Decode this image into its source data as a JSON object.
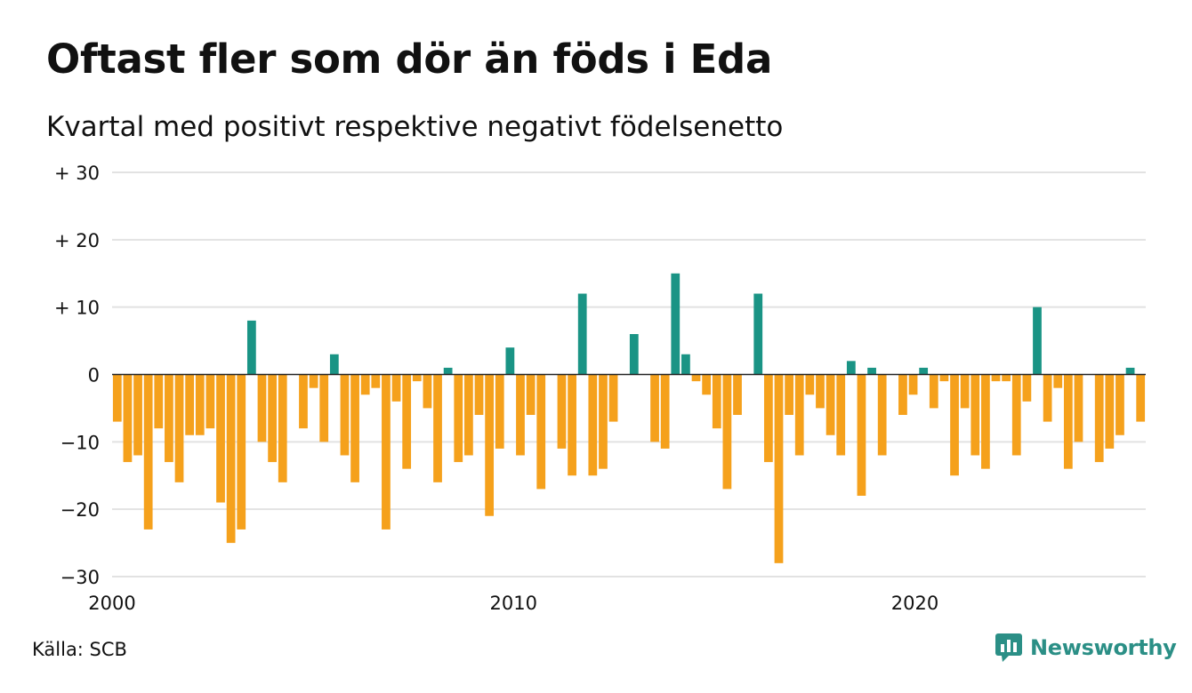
{
  "chart_data": {
    "type": "bar",
    "title": "Oftast fler som dör än föds i Eda",
    "subtitle": "Kvartal med positivt respektive negativt födelsenetto",
    "ylim": [
      -30,
      30
    ],
    "y_ticks": [
      30,
      20,
      10,
      0,
      -10,
      -20,
      -30
    ],
    "y_tick_labels": [
      "+ 30",
      "+ 20",
      "+ 10",
      "0",
      "−10",
      "−20",
      "−30"
    ],
    "x_range": [
      2000,
      2025.75
    ],
    "x_ticks": [
      2000,
      2010,
      2020
    ],
    "x_tick_labels": [
      "2000",
      "2010",
      "2020"
    ],
    "grid": true,
    "colors": {
      "positive": "#1a9485",
      "negative": "#f5a11c"
    },
    "start": "2000 Q1",
    "values": [
      -7,
      -13,
      -12,
      -23,
      -8,
      -13,
      -16,
      -9,
      -9,
      -8,
      -19,
      -25,
      -23,
      8,
      -10,
      -13,
      -16,
      0,
      -8,
      -2,
      -10,
      3,
      -12,
      -16,
      -3,
      -2,
      -23,
      -4,
      -14,
      -1,
      -5,
      -16,
      1,
      -13,
      -12,
      -6,
      -21,
      -11,
      4,
      -12,
      -6,
      -17,
      0,
      -11,
      -15,
      12,
      -15,
      -14,
      -7,
      0,
      6,
      0,
      -10,
      -11,
      15,
      3,
      -1,
      -3,
      -8,
      -17,
      -6,
      0,
      12,
      -13,
      -28,
      -6,
      -12,
      -3,
      -5,
      -9,
      -12,
      2,
      -18,
      1,
      -12,
      0,
      -6,
      -3,
      1,
      -5,
      -1,
      -15,
      -5,
      -12,
      -14,
      -1,
      -1,
      -12,
      -4,
      10,
      -7,
      -2,
      -14,
      -10,
      0,
      -13,
      -11,
      -9,
      1,
      -7
    ]
  },
  "footer": {
    "source": "Källa: SCB",
    "brand": "Newsworthy"
  }
}
